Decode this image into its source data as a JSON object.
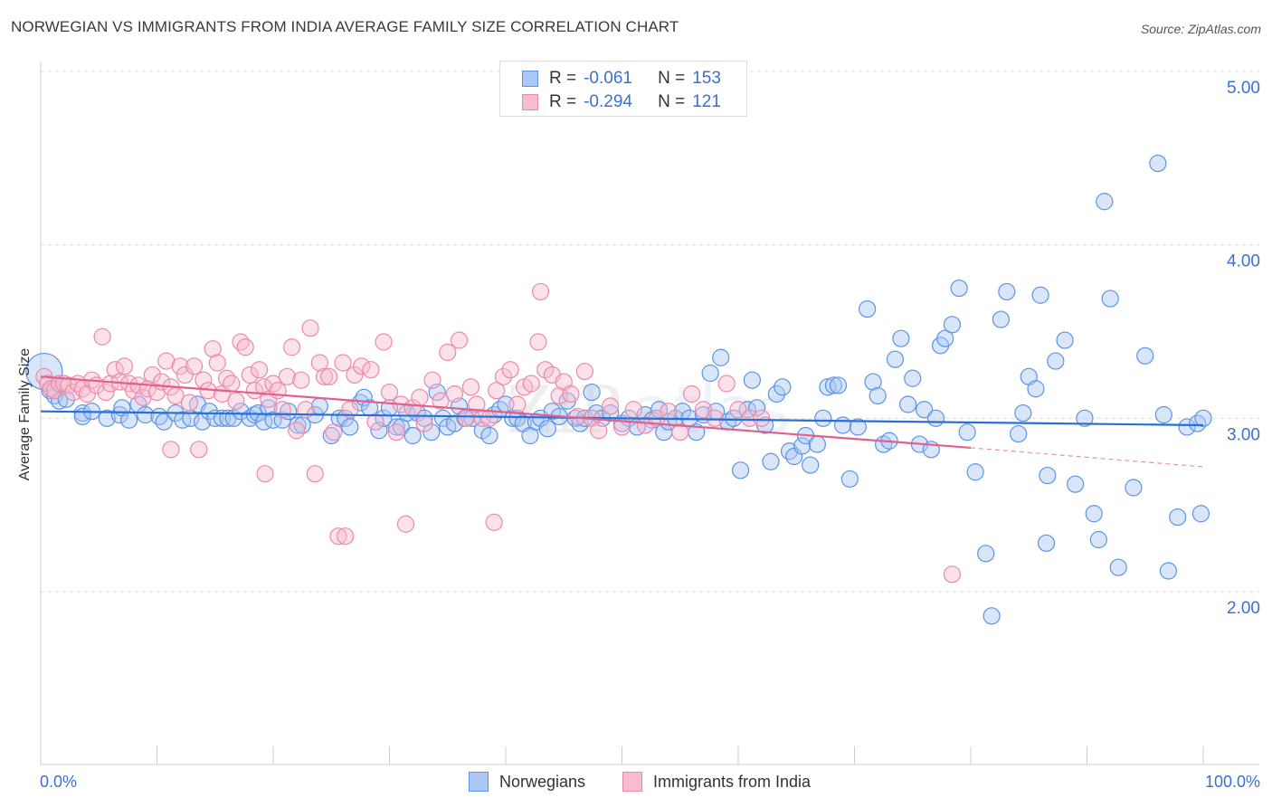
{
  "header": {
    "title": "NORWEGIAN VS IMMIGRANTS FROM INDIA AVERAGE FAMILY SIZE CORRELATION CHART",
    "source": "Source: ZipAtlas.com"
  },
  "legend": {
    "series1": {
      "r_label": "R =",
      "r_value": "-0.061",
      "n_label": "N =",
      "n_value": "153"
    },
    "series2": {
      "r_label": "R =",
      "r_value": "-0.294",
      "n_label": "N =",
      "n_value": "121"
    }
  },
  "colors": {
    "blue": "#5b93e6",
    "blue_fill": "#aac8f3",
    "blue_line": "#2a6fd6",
    "pink": "#ee88aa",
    "pink_fill": "#f7bccf",
    "pink_line": "#e0608e",
    "tick_text": "#3b6fd1"
  },
  "chart_data": {
    "type": "scatter",
    "title": "NORWEGIAN VS IMMIGRANTS FROM INDIA AVERAGE FAMILY SIZE CORRELATION CHART",
    "xlabel": "",
    "ylabel": "Average Family Size",
    "xlim": [
      0,
      100
    ],
    "ylim": [
      1.0,
      5.1
    ],
    "x_tick_labels": [
      "0.0%",
      "100.0%"
    ],
    "y_ticks": [
      2.0,
      3.0,
      4.0,
      5.0
    ],
    "y_tick_labels": [
      "2.00",
      "3.00",
      "4.00",
      "5.00"
    ],
    "grid": "horizontal dashed",
    "legend_placement": "top-center and bottom",
    "series": [
      {
        "name": "Norwegians",
        "r": -0.061,
        "n": 153,
        "trend": {
          "x": [
            0,
            100
          ],
          "y": [
            3.04,
            2.96
          ]
        },
        "points": [
          [
            0.3,
            3.27
          ],
          [
            0.8,
            3.16
          ],
          [
            1.2,
            3.13
          ],
          [
            1.6,
            3.1
          ],
          [
            2.2,
            3.11
          ],
          [
            3.6,
            3.03
          ],
          [
            3.6,
            3.01
          ],
          [
            4.4,
            3.04
          ],
          [
            5.7,
            3.0
          ],
          [
            6.8,
            3.02
          ],
          [
            7.0,
            3.06
          ],
          [
            7.6,
            2.99
          ],
          [
            8.4,
            3.08
          ],
          [
            9.0,
            3.02
          ],
          [
            10.2,
            3.01
          ],
          [
            10.6,
            2.98
          ],
          [
            11.6,
            3.03
          ],
          [
            12.2,
            2.99
          ],
          [
            12.9,
            3.0
          ],
          [
            13.5,
            3.08
          ],
          [
            13.9,
            2.98
          ],
          [
            14.5,
            3.04
          ],
          [
            15.0,
            3.0
          ],
          [
            15.6,
            3.0
          ],
          [
            16.1,
            3.0
          ],
          [
            16.6,
            3.0
          ],
          [
            17.2,
            3.04
          ],
          [
            18.0,
            3.0
          ],
          [
            18.4,
            3.02
          ],
          [
            18.7,
            3.03
          ],
          [
            19.2,
            2.98
          ],
          [
            19.6,
            3.06
          ],
          [
            20.0,
            2.99
          ],
          [
            20.8,
            2.99
          ],
          [
            21.3,
            3.04
          ],
          [
            22.1,
            2.96
          ],
          [
            22.5,
            2.96
          ],
          [
            23.6,
            3.02
          ],
          [
            24.0,
            3.07
          ],
          [
            25.0,
            2.9
          ],
          [
            25.7,
            3.0
          ],
          [
            26.2,
            3.0
          ],
          [
            26.6,
            2.95
          ],
          [
            27.5,
            3.09
          ],
          [
            27.8,
            3.12
          ],
          [
            28.3,
            3.06
          ],
          [
            29.1,
            2.93
          ],
          [
            29.5,
            3.0
          ],
          [
            30.0,
            3.06
          ],
          [
            30.6,
            2.95
          ],
          [
            31.0,
            2.95
          ],
          [
            31.5,
            3.03
          ],
          [
            32.0,
            2.9
          ],
          [
            32.4,
            3.03
          ],
          [
            33.0,
            3.0
          ],
          [
            33.6,
            2.92
          ],
          [
            34.1,
            3.15
          ],
          [
            34.6,
            3.0
          ],
          [
            35.0,
            2.95
          ],
          [
            35.6,
            2.97
          ],
          [
            36.0,
            3.07
          ],
          [
            36.5,
            3.0
          ],
          [
            37.1,
            3.0
          ],
          [
            38.0,
            2.93
          ],
          [
            38.6,
            2.9
          ],
          [
            39.0,
            3.02
          ],
          [
            39.5,
            3.05
          ],
          [
            40.0,
            3.08
          ],
          [
            40.6,
            3.0
          ],
          [
            41.0,
            3.0
          ],
          [
            41.5,
            2.97
          ],
          [
            42.1,
            2.9
          ],
          [
            42.6,
            2.98
          ],
          [
            43.0,
            3.0
          ],
          [
            43.6,
            2.94
          ],
          [
            44.0,
            3.04
          ],
          [
            44.6,
            3.01
          ],
          [
            45.3,
            3.1
          ],
          [
            46.0,
            3.0
          ],
          [
            46.4,
            2.97
          ],
          [
            46.8,
            3.0
          ],
          [
            47.4,
            3.15
          ],
          [
            47.8,
            3.03
          ],
          [
            48.3,
            3.0
          ],
          [
            49.0,
            3.03
          ],
          [
            50.0,
            2.97
          ],
          [
            50.6,
            3.0
          ],
          [
            51.3,
            2.95
          ],
          [
            52.0,
            3.02
          ],
          [
            52.6,
            2.99
          ],
          [
            53.2,
            3.05
          ],
          [
            53.6,
            2.92
          ],
          [
            54.0,
            2.98
          ],
          [
            54.6,
            3.0
          ],
          [
            55.2,
            3.04
          ],
          [
            55.8,
            3.0
          ],
          [
            56.4,
            2.92
          ],
          [
            57.0,
            3.02
          ],
          [
            57.6,
            3.26
          ],
          [
            58.1,
            3.04
          ],
          [
            58.5,
            3.35
          ],
          [
            59.1,
            2.98
          ],
          [
            59.6,
            3.0
          ],
          [
            60.2,
            2.7
          ],
          [
            60.8,
            3.05
          ],
          [
            61.2,
            3.22
          ],
          [
            61.6,
            3.06
          ],
          [
            62.3,
            2.96
          ],
          [
            62.8,
            2.75
          ],
          [
            63.3,
            3.14
          ],
          [
            63.8,
            3.18
          ],
          [
            64.4,
            2.81
          ],
          [
            64.8,
            2.78
          ],
          [
            65.5,
            2.84
          ],
          [
            65.8,
            2.9
          ],
          [
            66.2,
            2.73
          ],
          [
            66.8,
            2.85
          ],
          [
            67.3,
            3.0
          ],
          [
            67.7,
            3.18
          ],
          [
            68.2,
            3.19
          ],
          [
            68.6,
            3.19
          ],
          [
            69.0,
            2.96
          ],
          [
            69.6,
            2.65
          ],
          [
            70.3,
            2.95
          ],
          [
            71.1,
            3.63
          ],
          [
            71.6,
            3.21
          ],
          [
            72.0,
            3.13
          ],
          [
            72.5,
            2.85
          ],
          [
            73.0,
            2.87
          ],
          [
            73.5,
            3.34
          ],
          [
            74.0,
            3.46
          ],
          [
            74.6,
            3.08
          ],
          [
            75.0,
            3.23
          ],
          [
            75.6,
            2.85
          ],
          [
            76.0,
            3.05
          ],
          [
            76.6,
            2.82
          ],
          [
            77.0,
            3.0
          ],
          [
            77.4,
            3.42
          ],
          [
            77.8,
            3.46
          ],
          [
            78.4,
            3.54
          ],
          [
            79.0,
            3.75
          ],
          [
            79.7,
            2.92
          ],
          [
            80.4,
            2.69
          ],
          [
            81.3,
            2.22
          ],
          [
            81.8,
            1.86
          ],
          [
            82.6,
            3.57
          ],
          [
            83.1,
            3.73
          ],
          [
            84.1,
            2.91
          ],
          [
            84.5,
            3.03
          ],
          [
            85.0,
            3.24
          ],
          [
            85.6,
            3.17
          ],
          [
            86.0,
            3.71
          ],
          [
            86.6,
            2.67
          ],
          [
            87.3,
            3.33
          ],
          [
            88.1,
            3.45
          ],
          [
            89.0,
            2.62
          ],
          [
            89.8,
            3.0
          ],
          [
            90.6,
            2.45
          ],
          [
            91.5,
            4.25
          ],
          [
            92.0,
            3.69
          ],
          [
            92.7,
            2.14
          ],
          [
            94.0,
            2.6
          ],
          [
            95.0,
            3.36
          ],
          [
            96.1,
            4.47
          ],
          [
            96.6,
            3.02
          ],
          [
            97.8,
            2.43
          ],
          [
            98.6,
            2.95
          ],
          [
            99.5,
            2.97
          ],
          [
            99.8,
            2.45
          ],
          [
            100.0,
            3.0
          ],
          [
            86.5,
            2.28
          ],
          [
            91.0,
            2.3
          ],
          [
            97.0,
            2.12
          ]
        ]
      },
      {
        "name": "Immigrants from India",
        "r": -0.294,
        "n": 121,
        "trend": {
          "x": [
            0,
            80
          ],
          "y": [
            3.24,
            2.83
          ],
          "dashed_x": [
            80,
            100
          ],
          "dashed_y": [
            2.83,
            2.72
          ]
        },
        "points": [
          [
            0.3,
            3.24
          ],
          [
            0.6,
            3.2
          ],
          [
            0.9,
            3.17
          ],
          [
            1.2,
            3.16
          ],
          [
            1.6,
            3.2
          ],
          [
            2.0,
            3.2
          ],
          [
            2.4,
            3.19
          ],
          [
            2.8,
            3.15
          ],
          [
            3.2,
            3.2
          ],
          [
            3.6,
            3.17
          ],
          [
            4.0,
            3.14
          ],
          [
            4.4,
            3.22
          ],
          [
            4.8,
            3.19
          ],
          [
            5.3,
            3.47
          ],
          [
            5.6,
            3.15
          ],
          [
            6.0,
            3.2
          ],
          [
            6.4,
            3.28
          ],
          [
            6.8,
            3.21
          ],
          [
            7.2,
            3.3
          ],
          [
            7.6,
            3.2
          ],
          [
            8.0,
            3.16
          ],
          [
            8.4,
            3.19
          ],
          [
            8.8,
            3.12
          ],
          [
            9.2,
            3.17
          ],
          [
            9.6,
            3.25
          ],
          [
            10.0,
            3.15
          ],
          [
            10.4,
            3.21
          ],
          [
            10.8,
            3.33
          ],
          [
            11.2,
            3.18
          ],
          [
            11.6,
            3.13
          ],
          [
            12.0,
            3.3
          ],
          [
            12.4,
            3.25
          ],
          [
            12.8,
            3.09
          ],
          [
            13.2,
            3.3
          ],
          [
            13.6,
            2.82
          ],
          [
            14.0,
            3.22
          ],
          [
            14.4,
            3.16
          ],
          [
            14.8,
            3.4
          ],
          [
            15.2,
            3.32
          ],
          [
            15.6,
            3.14
          ],
          [
            16.0,
            3.23
          ],
          [
            16.4,
            3.2
          ],
          [
            16.8,
            3.1
          ],
          [
            17.2,
            3.44
          ],
          [
            17.6,
            3.41
          ],
          [
            18.0,
            3.25
          ],
          [
            18.4,
            3.16
          ],
          [
            18.8,
            3.28
          ],
          [
            19.2,
            3.18
          ],
          [
            19.6,
            3.11
          ],
          [
            20.0,
            3.2
          ],
          [
            20.4,
            3.16
          ],
          [
            20.8,
            3.05
          ],
          [
            21.2,
            3.24
          ],
          [
            21.6,
            3.41
          ],
          [
            22.0,
            2.93
          ],
          [
            22.4,
            3.22
          ],
          [
            22.8,
            3.05
          ],
          [
            23.2,
            3.52
          ],
          [
            23.6,
            2.68
          ],
          [
            24.0,
            3.32
          ],
          [
            24.4,
            3.24
          ],
          [
            24.8,
            3.24
          ],
          [
            25.2,
            2.92
          ],
          [
            25.6,
            2.32
          ],
          [
            26.0,
            3.32
          ],
          [
            26.6,
            3.05
          ],
          [
            27.0,
            3.25
          ],
          [
            27.6,
            3.3
          ],
          [
            28.4,
            3.28
          ],
          [
            28.8,
            2.98
          ],
          [
            29.5,
            3.44
          ],
          [
            30.0,
            3.15
          ],
          [
            30.6,
            2.92
          ],
          [
            31.0,
            3.08
          ],
          [
            31.4,
            2.39
          ],
          [
            32.0,
            3.06
          ],
          [
            32.6,
            3.12
          ],
          [
            33.0,
            2.97
          ],
          [
            33.7,
            3.22
          ],
          [
            34.4,
            3.1
          ],
          [
            35.0,
            3.38
          ],
          [
            35.6,
            3.14
          ],
          [
            36.0,
            3.45
          ],
          [
            36.6,
            3.0
          ],
          [
            37.0,
            3.18
          ],
          [
            37.5,
            3.08
          ],
          [
            38.0,
            3.0
          ],
          [
            38.6,
            3.0
          ],
          [
            39.2,
            3.16
          ],
          [
            39.8,
            3.24
          ],
          [
            40.4,
            3.28
          ],
          [
            41.0,
            3.08
          ],
          [
            41.6,
            3.18
          ],
          [
            42.2,
            3.2
          ],
          [
            42.8,
            3.44
          ],
          [
            43.4,
            3.28
          ],
          [
            44.0,
            3.25
          ],
          [
            44.6,
            3.13
          ],
          [
            45.0,
            3.21
          ],
          [
            45.6,
            3.14
          ],
          [
            46.2,
            3.01
          ],
          [
            46.8,
            3.27
          ],
          [
            47.4,
            3.0
          ],
          [
            48.0,
            2.93
          ],
          [
            49.0,
            3.07
          ],
          [
            50.0,
            2.95
          ],
          [
            51.0,
            3.05
          ],
          [
            52.0,
            2.96
          ],
          [
            53.0,
            3.0
          ],
          [
            54.0,
            3.04
          ],
          [
            55.0,
            2.92
          ],
          [
            56.0,
            3.14
          ],
          [
            57.0,
            3.05
          ],
          [
            58.0,
            3.0
          ],
          [
            59.0,
            3.2
          ],
          [
            60.0,
            3.05
          ],
          [
            61.0,
            3.0
          ],
          [
            62.0,
            3.0
          ],
          [
            43.0,
            3.73
          ],
          [
            39.0,
            2.4
          ],
          [
            78.4,
            2.1
          ],
          [
            19.3,
            2.68
          ],
          [
            26.2,
            2.32
          ],
          [
            11.2,
            2.82
          ]
        ]
      }
    ]
  },
  "bottom_legend": {
    "item1": "Norwegians",
    "item2": "Immigrants from India"
  }
}
